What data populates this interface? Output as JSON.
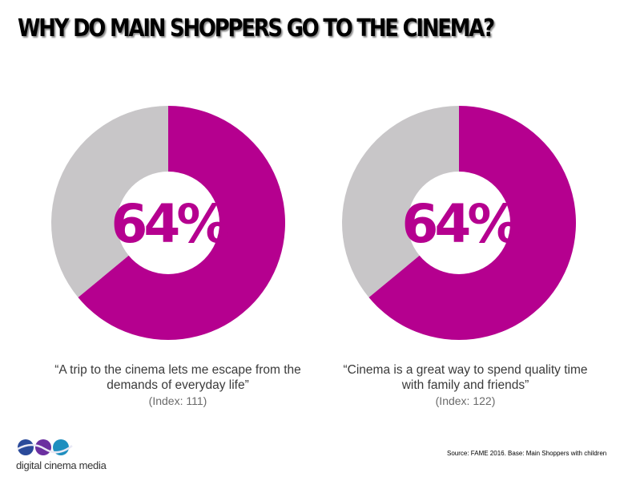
{
  "header": {
    "title": "WHY DO MAIN SHOPPERS GO TO THE CINEMA?"
  },
  "colors": {
    "accent": "#b5008f",
    "remainder": "#c8c6c8"
  },
  "chart_data": [
    {
      "type": "pie",
      "values": [
        64,
        36
      ],
      "center_label": "64%",
      "quote": "“A trip to the cinema lets me escape from the demands of everyday life”",
      "index": "(Index: 111)"
    },
    {
      "type": "pie",
      "values": [
        64,
        36
      ],
      "center_label": "64%",
      "quote": "“Cinema is a great way to spend quality time with family and friends”",
      "index": "(Index: 122)"
    }
  ],
  "footer": {
    "source": "Source: FAME 2016. Base: Main Shoppers with children",
    "logo_text": "digital cinema media"
  }
}
